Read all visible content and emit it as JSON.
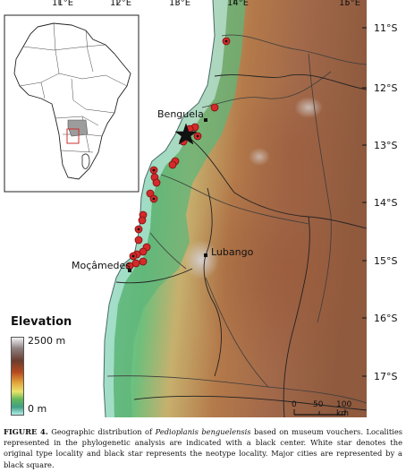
{
  "map": {
    "longitude_labels": [
      "11°E",
      "12°E",
      "13°E",
      "14°E",
      "15°E"
    ],
    "latitude_labels": [
      "11°S",
      "12°S",
      "13°S",
      "14°S",
      "15°S",
      "16°S",
      "17°S"
    ],
    "cities": [
      {
        "name": "Benguela"
      },
      {
        "name": "Lubango"
      },
      {
        "name": "Moçâmedes"
      }
    ],
    "legend": {
      "title": "Elevation",
      "max_label": "2500 m",
      "min_label": "0 m"
    },
    "scale_bar": {
      "labels": [
        "0",
        "50",
        "100 km"
      ]
    },
    "colors": {
      "ocean": "#ffffff",
      "lowland": "#62b894",
      "midland": "#b99a6a",
      "highland": "#9a5a3d",
      "locality_marker": "#d42a2a",
      "star": "#111111"
    }
  },
  "caption": {
    "label": "FIGURE 4.",
    "text_before_species": "Geographic distribution of ",
    "species": "Pedioplanis benguelensis",
    "text_after_species": " based on museum vouchers. Localities represented in the phylogenetic analysis are indicated with a black center. White star denotes the original type locality and black star represents the neotype locality. Major cities are represented by a black square."
  }
}
